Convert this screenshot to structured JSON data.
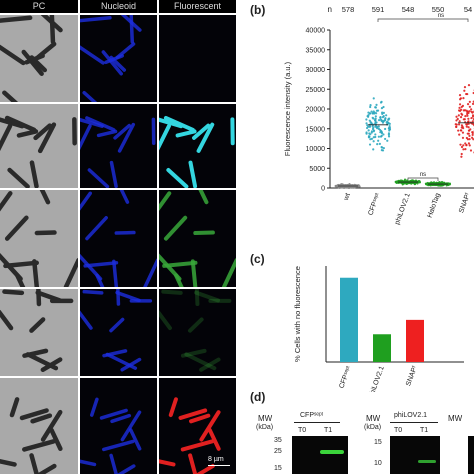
{
  "columns": {
    "pc": "PC",
    "nucleoid": "Nucleoid",
    "fluor": "Fluorescent system"
  },
  "scale_bar": "8 µm",
  "colors": {
    "cyan": "#34d6e0",
    "blue": "#1d2ee0",
    "green": "#39a83a",
    "red": "#e02020",
    "teal": "#2ea9bf",
    "phi_green": "#1f9f1f",
    "snap_red": "#ee2020"
  },
  "panel_b": {
    "label": "(b)",
    "n_label": "n",
    "n_values": [
      "578",
      "591",
      "548",
      "550",
      "54"
    ],
    "sig_label": "ns",
    "chart_data": {
      "type": "scatter",
      "ylabel": "Fluorescence intensity (a.u.)",
      "ylim": [
        0,
        40000
      ],
      "yticks": [
        0,
        5000,
        10000,
        15000,
        20000,
        25000,
        30000,
        35000,
        40000
      ],
      "categories": [
        "wt",
        "CFPˢᵉᵖᵗ",
        "phiLOV2.1",
        "HaloTag",
        "SNAPᶠ"
      ],
      "series": [
        {
          "center": 500,
          "low": 0,
          "high": 1800
        },
        {
          "center": 16000,
          "low": 9000,
          "high": 32500
        },
        {
          "center": 1500,
          "low": 500,
          "high": 2500
        },
        {
          "center": 1000,
          "low": 300,
          "high": 2000
        },
        {
          "center": 16500,
          "low": 2000,
          "high": 33000
        }
      ]
    }
  },
  "panel_c": {
    "label": "(c)",
    "chart_data": {
      "type": "bar",
      "ylabel": "% Cells with no fluorescence",
      "categories": [
        "CFPˢᵉᵖᵗ",
        "phiLOV2.1",
        "SNAPᶠ"
      ],
      "values": [
        15.8,
        5.2,
        7.9
      ],
      "ylim": [
        0,
        18
      ]
    }
  },
  "panel_d": {
    "label": "(d)",
    "blots": [
      {
        "mw_label": "MW",
        "kda_label": "(kDa)",
        "title": "CFPˢᵉᵖᵗ",
        "t0": "T0",
        "t1": "T1",
        "markers": [
          "35",
          "25",
          "15"
        ]
      },
      {
        "mw_label": "MW",
        "kda_label": "(kDa)",
        "title": "phiLOV2.1",
        "t0": "T0",
        "t1": "T1",
        "markers": [
          "15",
          "10"
        ]
      },
      {
        "mw_label": "MW",
        "kda_label": "",
        "title": "",
        "t0": "",
        "t1": "",
        "markers": []
      }
    ]
  }
}
